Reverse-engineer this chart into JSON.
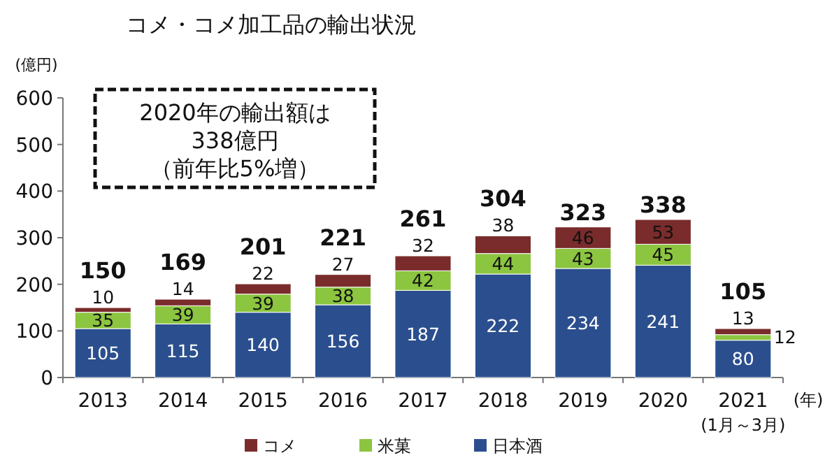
{
  "chart_data": {
    "type": "bar",
    "stacked": true,
    "title": "コメ・コメ加工品の輸出状況",
    "ylabel": "(億円)",
    "xlabel": "(年)",
    "categories": [
      "2013",
      "2014",
      "2015",
      "2016",
      "2017",
      "2018",
      "2019",
      "2020",
      "2021"
    ],
    "series": [
      {
        "name": "日本酒",
        "color": "#2b4f8e",
        "values": [
          105,
          115,
          140,
          156,
          187,
          222,
          234,
          241,
          80
        ]
      },
      {
        "name": "米菓",
        "color": "#8cc540",
        "values": [
          35,
          39,
          39,
          38,
          42,
          44,
          43,
          45,
          12
        ]
      },
      {
        "name": "コメ",
        "color": "#7a2b2b",
        "values": [
          10,
          14,
          22,
          27,
          32,
          38,
          46,
          53,
          13
        ]
      }
    ],
    "totals": [
      "150",
      "169",
      "201",
      "221",
      "261",
      "304",
      "323",
      "338",
      "105"
    ],
    "data_labels": true,
    "ylim": [
      0,
      600
    ],
    "yticks": [
      0,
      100,
      200,
      300,
      400,
      500,
      600
    ],
    "legend": "bottom",
    "annotations": [
      "(1月～3月)",
      "2020年の輸出額は",
      "338億円",
      "（前年比5%増）"
    ]
  }
}
